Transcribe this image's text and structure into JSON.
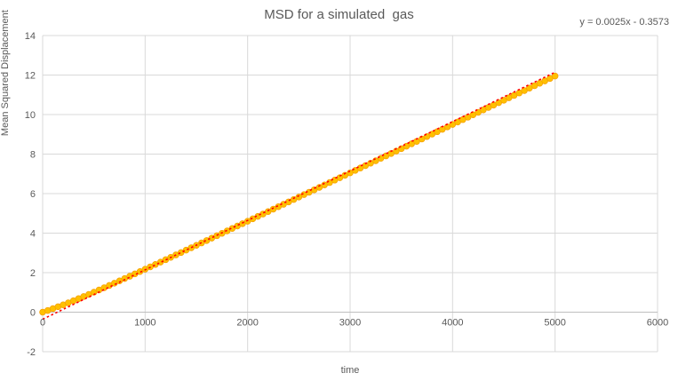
{
  "colors": {
    "background": "#ffffff",
    "gridline": "#d9d9d9",
    "axis_line": "#bfbfbf",
    "text": "#595959",
    "marker_fill": "#ffc000",
    "marker_edge": "#f59e00",
    "trendline": "#ff0000"
  },
  "chart_data": {
    "type": "scatter",
    "title": "MSD for a simulated  gas",
    "xlabel": "time",
    "ylabel": "Mean Squared Displacement",
    "xlim": [
      0,
      6000
    ],
    "ylim": [
      -2,
      14
    ],
    "x_ticks": [
      0,
      1000,
      2000,
      3000,
      4000,
      5000,
      6000
    ],
    "y_ticks": [
      -2,
      0,
      2,
      4,
      6,
      8,
      10,
      12,
      14
    ],
    "grid": true,
    "legend": "none",
    "series": [
      {
        "name": "MSD",
        "marker": "circle",
        "color": "#ffc000",
        "x": [
          0,
          50,
          100,
          150,
          200,
          250,
          300,
          350,
          400,
          450,
          500,
          550,
          600,
          650,
          700,
          750,
          800,
          850,
          900,
          950,
          1000,
          1050,
          1100,
          1150,
          1200,
          1250,
          1300,
          1350,
          1400,
          1450,
          1500,
          1550,
          1600,
          1650,
          1700,
          1750,
          1800,
          1850,
          1900,
          1950,
          2000,
          2050,
          2100,
          2150,
          2200,
          2250,
          2300,
          2350,
          2400,
          2450,
          2500,
          2550,
          2600,
          2650,
          2700,
          2750,
          2800,
          2850,
          2900,
          2950,
          3000,
          3050,
          3100,
          3150,
          3200,
          3250,
          3300,
          3350,
          3400,
          3450,
          3500,
          3550,
          3600,
          3650,
          3700,
          3750,
          3800,
          3850,
          3900,
          3950,
          4000,
          4050,
          4100,
          4150,
          4200,
          4250,
          4300,
          4350,
          4400,
          4450,
          4500,
          4550,
          4600,
          4650,
          4700,
          4750,
          4800,
          4850,
          4900,
          4950,
          5000
        ],
        "y": [
          0.0,
          0.087,
          0.179,
          0.274,
          0.372,
          0.473,
          0.577,
          0.683,
          0.79,
          0.9,
          1.011,
          1.123,
          1.237,
          1.352,
          1.467,
          1.584,
          1.701,
          1.818,
          1.937,
          2.055,
          2.175,
          2.294,
          2.414,
          2.534,
          2.655,
          2.776,
          2.897,
          3.018,
          3.139,
          3.261,
          3.382,
          3.504,
          3.626,
          3.747,
          3.869,
          3.991,
          4.113,
          4.235,
          4.358,
          4.48,
          4.602,
          4.724,
          4.847,
          4.969,
          5.091,
          5.214,
          5.336,
          5.458,
          5.581,
          5.703,
          5.826,
          5.948,
          6.07,
          6.193,
          6.315,
          6.438,
          6.56,
          6.683,
          6.805,
          6.928,
          7.05,
          7.173,
          7.295,
          7.418,
          7.54,
          7.663,
          7.785,
          7.908,
          8.03,
          8.153,
          8.275,
          8.398,
          8.52,
          8.643,
          8.765,
          8.888,
          9.01,
          9.133,
          9.255,
          9.378,
          9.5,
          9.623,
          9.745,
          9.868,
          9.99,
          10.113,
          10.235,
          10.358,
          10.48,
          10.603,
          10.725,
          10.848,
          10.97,
          11.093,
          11.215,
          11.338,
          11.46,
          11.583,
          11.705,
          11.828,
          11.95
        ]
      }
    ],
    "trendline": {
      "label": "y = 0.0025x - 0.3573",
      "slope": 0.0025,
      "intercept": -0.3573,
      "x_range": [
        0,
        5000
      ],
      "color": "#ff0000",
      "style": "dotted"
    }
  }
}
